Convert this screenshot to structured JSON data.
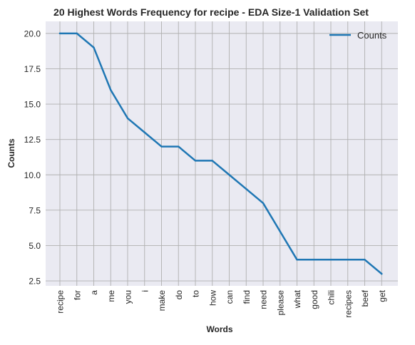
{
  "chart_data": {
    "type": "line",
    "title": "20 Highest Words Frequency for recipe - EDA Size-1 Validation Set",
    "xlabel": "Words",
    "ylabel": "Counts",
    "categories": [
      "recipe",
      "for",
      "a",
      "me",
      "you",
      "i",
      "make",
      "do",
      "to",
      "how",
      "can",
      "find",
      "need",
      "please",
      "what",
      "good",
      "chili",
      "recipes",
      "beef",
      "get"
    ],
    "series": [
      {
        "name": "Counts",
        "values": [
          20,
          20,
          19,
          16,
          14,
          13,
          12,
          12,
          11,
          11,
          10,
          9,
          8,
          6,
          4,
          4,
          4,
          4,
          4,
          3
        ]
      }
    ],
    "ylim": [
      2.15,
      20.85
    ],
    "yticks": [
      2.5,
      5.0,
      7.5,
      10.0,
      12.5,
      15.0,
      17.5,
      20.0
    ],
    "ytick_labels": [
      "2.5",
      "5.0",
      "7.5",
      "10.0",
      "12.5",
      "15.0",
      "17.5",
      "20.0"
    ],
    "grid": true,
    "legend_position": "top-right",
    "colors": {
      "line": "#1f77b4",
      "plot_bg": "#eaeaf2",
      "grid": "#b0b0b0",
      "text": "#262626"
    }
  }
}
